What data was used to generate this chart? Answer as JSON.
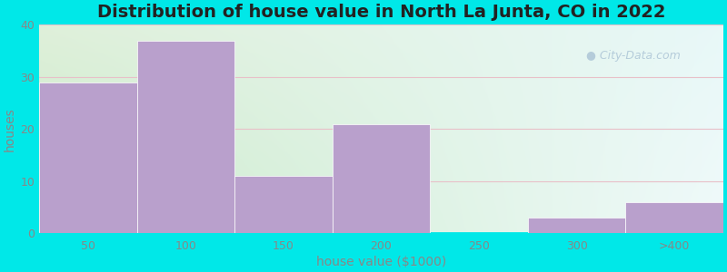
{
  "categories": [
    "50",
    "100",
    "150",
    "200",
    "250",
    "300",
    ">400"
  ],
  "values": [
    29,
    37,
    11,
    21,
    0,
    3,
    6
  ],
  "bar_color": "#b9a0cc",
  "bar_edgecolor": "#b9a0cc",
  "title": "Distribution of house value in North La Junta, CO in 2022",
  "xlabel": "house value ($1000)",
  "ylabel": "houses",
  "ylim": [
    0,
    40
  ],
  "yticks": [
    0,
    10,
    20,
    30,
    40
  ],
  "outer_bg": "#00e8e8",
  "bg_topleft": "#dff0da",
  "bg_topright": "#e8f8f8",
  "bg_bottomleft": "#c8eac8",
  "bg_bottomright": "#f0fafa",
  "title_fontsize": 14,
  "axis_label_fontsize": 10,
  "tick_fontsize": 9,
  "label_color": "#888888",
  "watermark_text": "City-Data.com",
  "watermark_color": "#b0c8d8",
  "grid_color": "#e8c0c8",
  "grid_linewidth": 0.8
}
